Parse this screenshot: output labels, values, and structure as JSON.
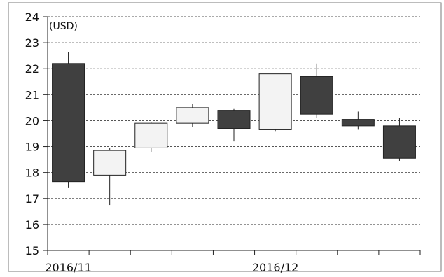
{
  "chart_data": {
    "type": "candlestick",
    "title": "",
    "unit_label": "(USD)",
    "xlabel": "",
    "ylabel": "",
    "ylim": [
      15,
      24
    ],
    "y_ticks": [
      15,
      16,
      17,
      18,
      19,
      20,
      21,
      22,
      23,
      24
    ],
    "grid": "horizontal dashed",
    "x_tick_labels": [
      {
        "label": "2016/11",
        "at_candle": 0
      },
      {
        "label": "2016/12",
        "at_candle": 5
      }
    ],
    "candles": [
      {
        "open": 22.2,
        "close": 17.65,
        "high": 22.65,
        "low": 17.4
      },
      {
        "open": 17.9,
        "close": 18.85,
        "high": 18.95,
        "low": 16.75
      },
      {
        "open": 18.95,
        "close": 19.9,
        "high": 19.95,
        "low": 18.8
      },
      {
        "open": 19.9,
        "close": 20.5,
        "high": 20.65,
        "low": 19.75
      },
      {
        "open": 20.4,
        "close": 19.7,
        "high": 20.45,
        "low": 19.2
      },
      {
        "open": 19.65,
        "close": 21.8,
        "high": 21.8,
        "low": 19.6
      },
      {
        "open": 21.7,
        "close": 20.25,
        "high": 22.2,
        "low": 20.1
      },
      {
        "open": 20.05,
        "close": 19.8,
        "high": 20.35,
        "low": 19.65
      },
      {
        "open": 19.8,
        "close": 18.55,
        "high": 20.1,
        "low": 18.45
      }
    ],
    "colors": {
      "up": "#f3f3f3",
      "down": "#404040",
      "border": "#222222",
      "grid": "#555555",
      "axis": "#222222"
    }
  }
}
